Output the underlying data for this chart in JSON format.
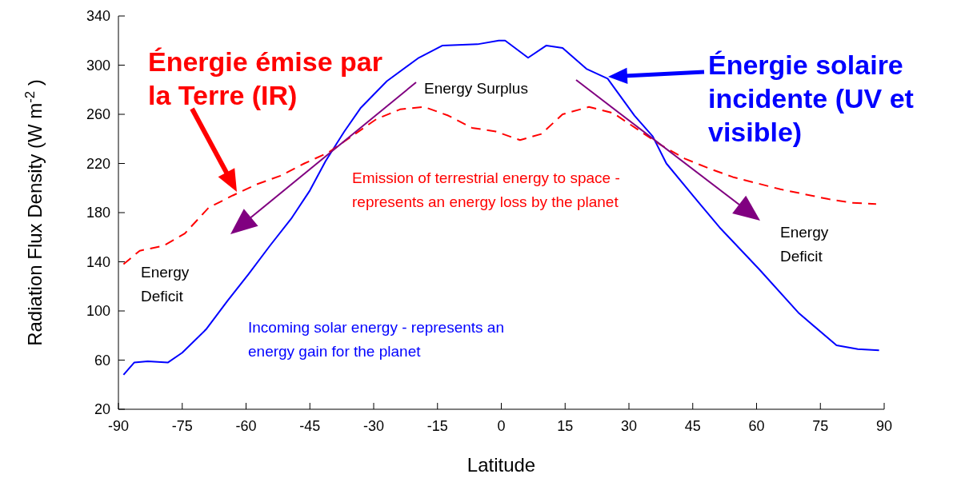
{
  "chart_data": {
    "type": "line",
    "xlabel": "Latitude",
    "ylabel": "Radiation Flux Density (W m$^{-2}$ )",
    "xlim": [
      -90,
      90
    ],
    "xticks": [
      -90,
      -75,
      -60,
      -45,
      -30,
      -15,
      0,
      15,
      30,
      45,
      60,
      75,
      90
    ],
    "ylim": [
      20,
      340
    ],
    "yticks": [
      20,
      60,
      100,
      140,
      180,
      220,
      260,
      300,
      340
    ],
    "legend": "top",
    "marker": "none",
    "series": [
      {
        "name": "Énergie solaire incidente (UV et visible)",
        "color": "#0000ff",
        "line_style": "solid",
        "x": [
          -88.8,
          -86.3,
          -83.1,
          -78.4,
          -75,
          -69.4,
          -64.4,
          -59.4,
          -54.4,
          -49.4,
          -45,
          -41.3,
          -36.9,
          -33.1,
          -26.9,
          -19.4,
          -13.8,
          -5.6,
          -0.6,
          0.9,
          6.3,
          10.6,
          14.4,
          20,
          25,
          31.3,
          35.6,
          38.8,
          45,
          51.3,
          60.6,
          70,
          78.8,
          83.8,
          88.8
        ],
        "values": [
          48,
          58,
          59,
          58,
          66,
          85,
          108,
          130,
          153,
          175,
          198,
          222,
          246,
          265,
          287,
          306,
          316,
          317,
          320,
          320,
          306,
          316,
          314,
          297,
          289,
          259,
          242,
          220,
          194,
          168,
          134,
          98,
          72,
          69,
          68
        ]
      },
      {
        "name": "Énergie émise par la Terre (IR)",
        "color": "#ff0000",
        "line_style": "dashed",
        "x": [
          -88.8,
          -85,
          -79.4,
          -74.4,
          -68.8,
          -63.1,
          -57.5,
          -51.9,
          -46.3,
          -40.6,
          -29.4,
          -23.8,
          -18.1,
          -12.5,
          -6.9,
          -1.3,
          4.4,
          9.4,
          14.4,
          20.6,
          26.3,
          31.9,
          37.5,
          43.1,
          48.8,
          54.4,
          60,
          65.6,
          71.3,
          76.9,
          82.5,
          88.1
        ],
        "values": [
          138,
          149,
          153,
          163,
          184,
          194,
          203,
          210,
          220,
          229,
          256,
          264,
          266,
          259,
          249,
          246,
          239,
          244,
          260,
          266,
          261,
          248,
          235,
          224,
          216,
          209,
          204,
          199,
          195,
          191,
          188,
          187
        ]
      }
    ],
    "annotations": [
      "Energy Surplus",
      "Emission of terrestrial energy to space - represents an energy loss by the planet",
      "Energy Deficit",
      "Energy Deficit",
      "Incoming solar energy - represents an energy gain for the planet"
    ]
  }
}
